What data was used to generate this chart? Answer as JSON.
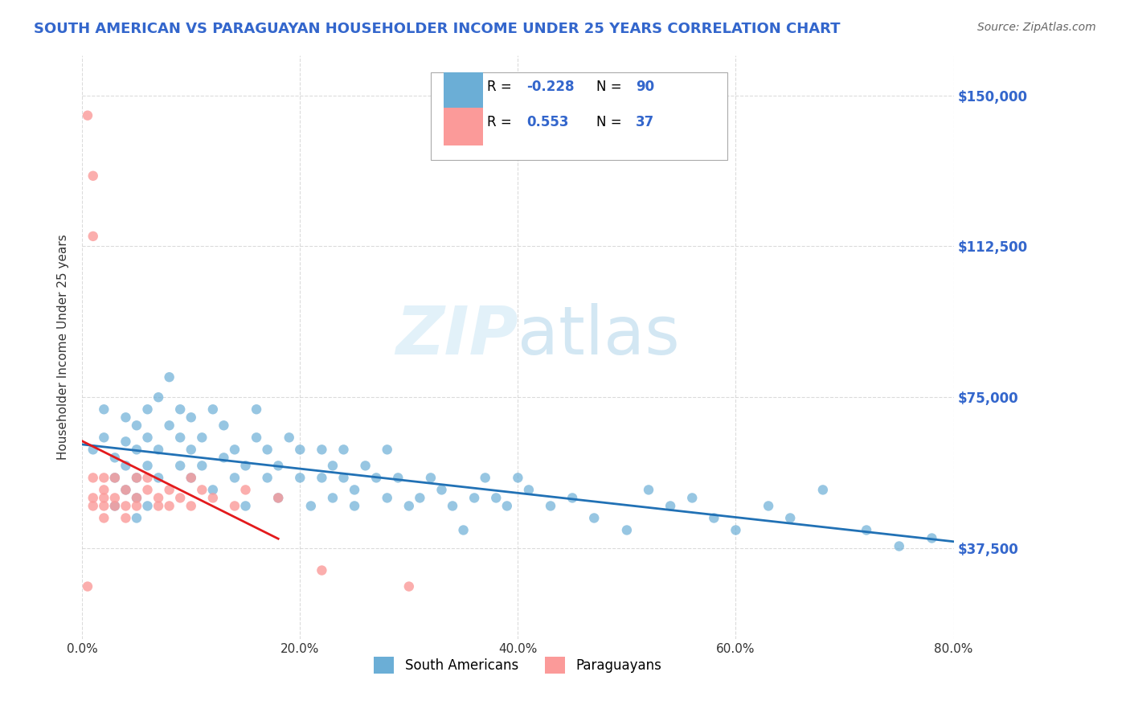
{
  "title": "SOUTH AMERICAN VS PARAGUAYAN HOUSEHOLDER INCOME UNDER 25 YEARS CORRELATION CHART",
  "source": "Source: ZipAtlas.com",
  "ylabel": "Householder Income Under 25 years",
  "xlabel_ticks": [
    "0.0%",
    "20.0%",
    "40.0%",
    "60.0%",
    "80.0%"
  ],
  "xlabel_vals": [
    0.0,
    0.2,
    0.4,
    0.6,
    0.8
  ],
  "ytick_labels": [
    "$37,500",
    "$75,000",
    "$112,500",
    "$150,000"
  ],
  "ytick_vals": [
    37500,
    75000,
    112500,
    150000
  ],
  "xlim": [
    0.0,
    0.8
  ],
  "ylim": [
    15000,
    160000
  ],
  "legend_labels": [
    "South Americans",
    "Paraguayans"
  ],
  "legend_r": [
    "-0.228",
    "0.553"
  ],
  "legend_n": [
    90,
    37
  ],
  "blue_color": "#6baed6",
  "pink_color": "#fb9a99",
  "blue_line_color": "#2171b5",
  "pink_line_color": "#e31a1c",
  "watermark": "ZIPatlas",
  "background_color": "#ffffff",
  "grid_color": "#cccccc",
  "title_color": "#3366cc",
  "axis_label_color": "#333333",
  "right_tick_color": "#3366cc",
  "south_american_x": [
    0.01,
    0.02,
    0.02,
    0.03,
    0.03,
    0.03,
    0.04,
    0.04,
    0.04,
    0.04,
    0.05,
    0.05,
    0.05,
    0.05,
    0.05,
    0.06,
    0.06,
    0.06,
    0.06,
    0.07,
    0.07,
    0.07,
    0.08,
    0.08,
    0.09,
    0.09,
    0.09,
    0.1,
    0.1,
    0.1,
    0.11,
    0.11,
    0.12,
    0.12,
    0.13,
    0.13,
    0.14,
    0.14,
    0.15,
    0.15,
    0.16,
    0.16,
    0.17,
    0.17,
    0.18,
    0.18,
    0.19,
    0.2,
    0.2,
    0.21,
    0.22,
    0.22,
    0.23,
    0.23,
    0.24,
    0.24,
    0.25,
    0.25,
    0.26,
    0.27,
    0.28,
    0.28,
    0.29,
    0.3,
    0.31,
    0.32,
    0.33,
    0.34,
    0.35,
    0.36,
    0.37,
    0.38,
    0.39,
    0.4,
    0.41,
    0.43,
    0.45,
    0.47,
    0.5,
    0.52,
    0.54,
    0.56,
    0.58,
    0.6,
    0.63,
    0.65,
    0.68,
    0.72,
    0.75,
    0.78
  ],
  "south_american_y": [
    62000,
    65000,
    72000,
    48000,
    55000,
    60000,
    58000,
    52000,
    64000,
    70000,
    45000,
    50000,
    55000,
    62000,
    68000,
    72000,
    58000,
    65000,
    48000,
    75000,
    55000,
    62000,
    80000,
    68000,
    58000,
    65000,
    72000,
    55000,
    62000,
    70000,
    58000,
    65000,
    72000,
    52000,
    60000,
    68000,
    55000,
    62000,
    48000,
    58000,
    65000,
    72000,
    55000,
    62000,
    50000,
    58000,
    65000,
    55000,
    62000,
    48000,
    55000,
    62000,
    50000,
    58000,
    62000,
    55000,
    52000,
    48000,
    58000,
    55000,
    62000,
    50000,
    55000,
    48000,
    50000,
    55000,
    52000,
    48000,
    42000,
    50000,
    55000,
    50000,
    48000,
    55000,
    52000,
    48000,
    50000,
    45000,
    42000,
    52000,
    48000,
    50000,
    45000,
    42000,
    48000,
    45000,
    52000,
    42000,
    38000,
    40000
  ],
  "paraguayan_x": [
    0.005,
    0.005,
    0.01,
    0.01,
    0.01,
    0.01,
    0.01,
    0.02,
    0.02,
    0.02,
    0.02,
    0.02,
    0.03,
    0.03,
    0.03,
    0.04,
    0.04,
    0.04,
    0.05,
    0.05,
    0.05,
    0.06,
    0.06,
    0.07,
    0.07,
    0.08,
    0.08,
    0.09,
    0.1,
    0.1,
    0.11,
    0.12,
    0.14,
    0.15,
    0.18,
    0.22,
    0.3
  ],
  "paraguayan_y": [
    145000,
    28000,
    130000,
    115000,
    55000,
    50000,
    48000,
    55000,
    50000,
    52000,
    48000,
    45000,
    55000,
    50000,
    48000,
    52000,
    48000,
    45000,
    55000,
    50000,
    48000,
    55000,
    52000,
    50000,
    48000,
    52000,
    48000,
    50000,
    55000,
    48000,
    52000,
    50000,
    48000,
    52000,
    50000,
    32000,
    28000
  ]
}
